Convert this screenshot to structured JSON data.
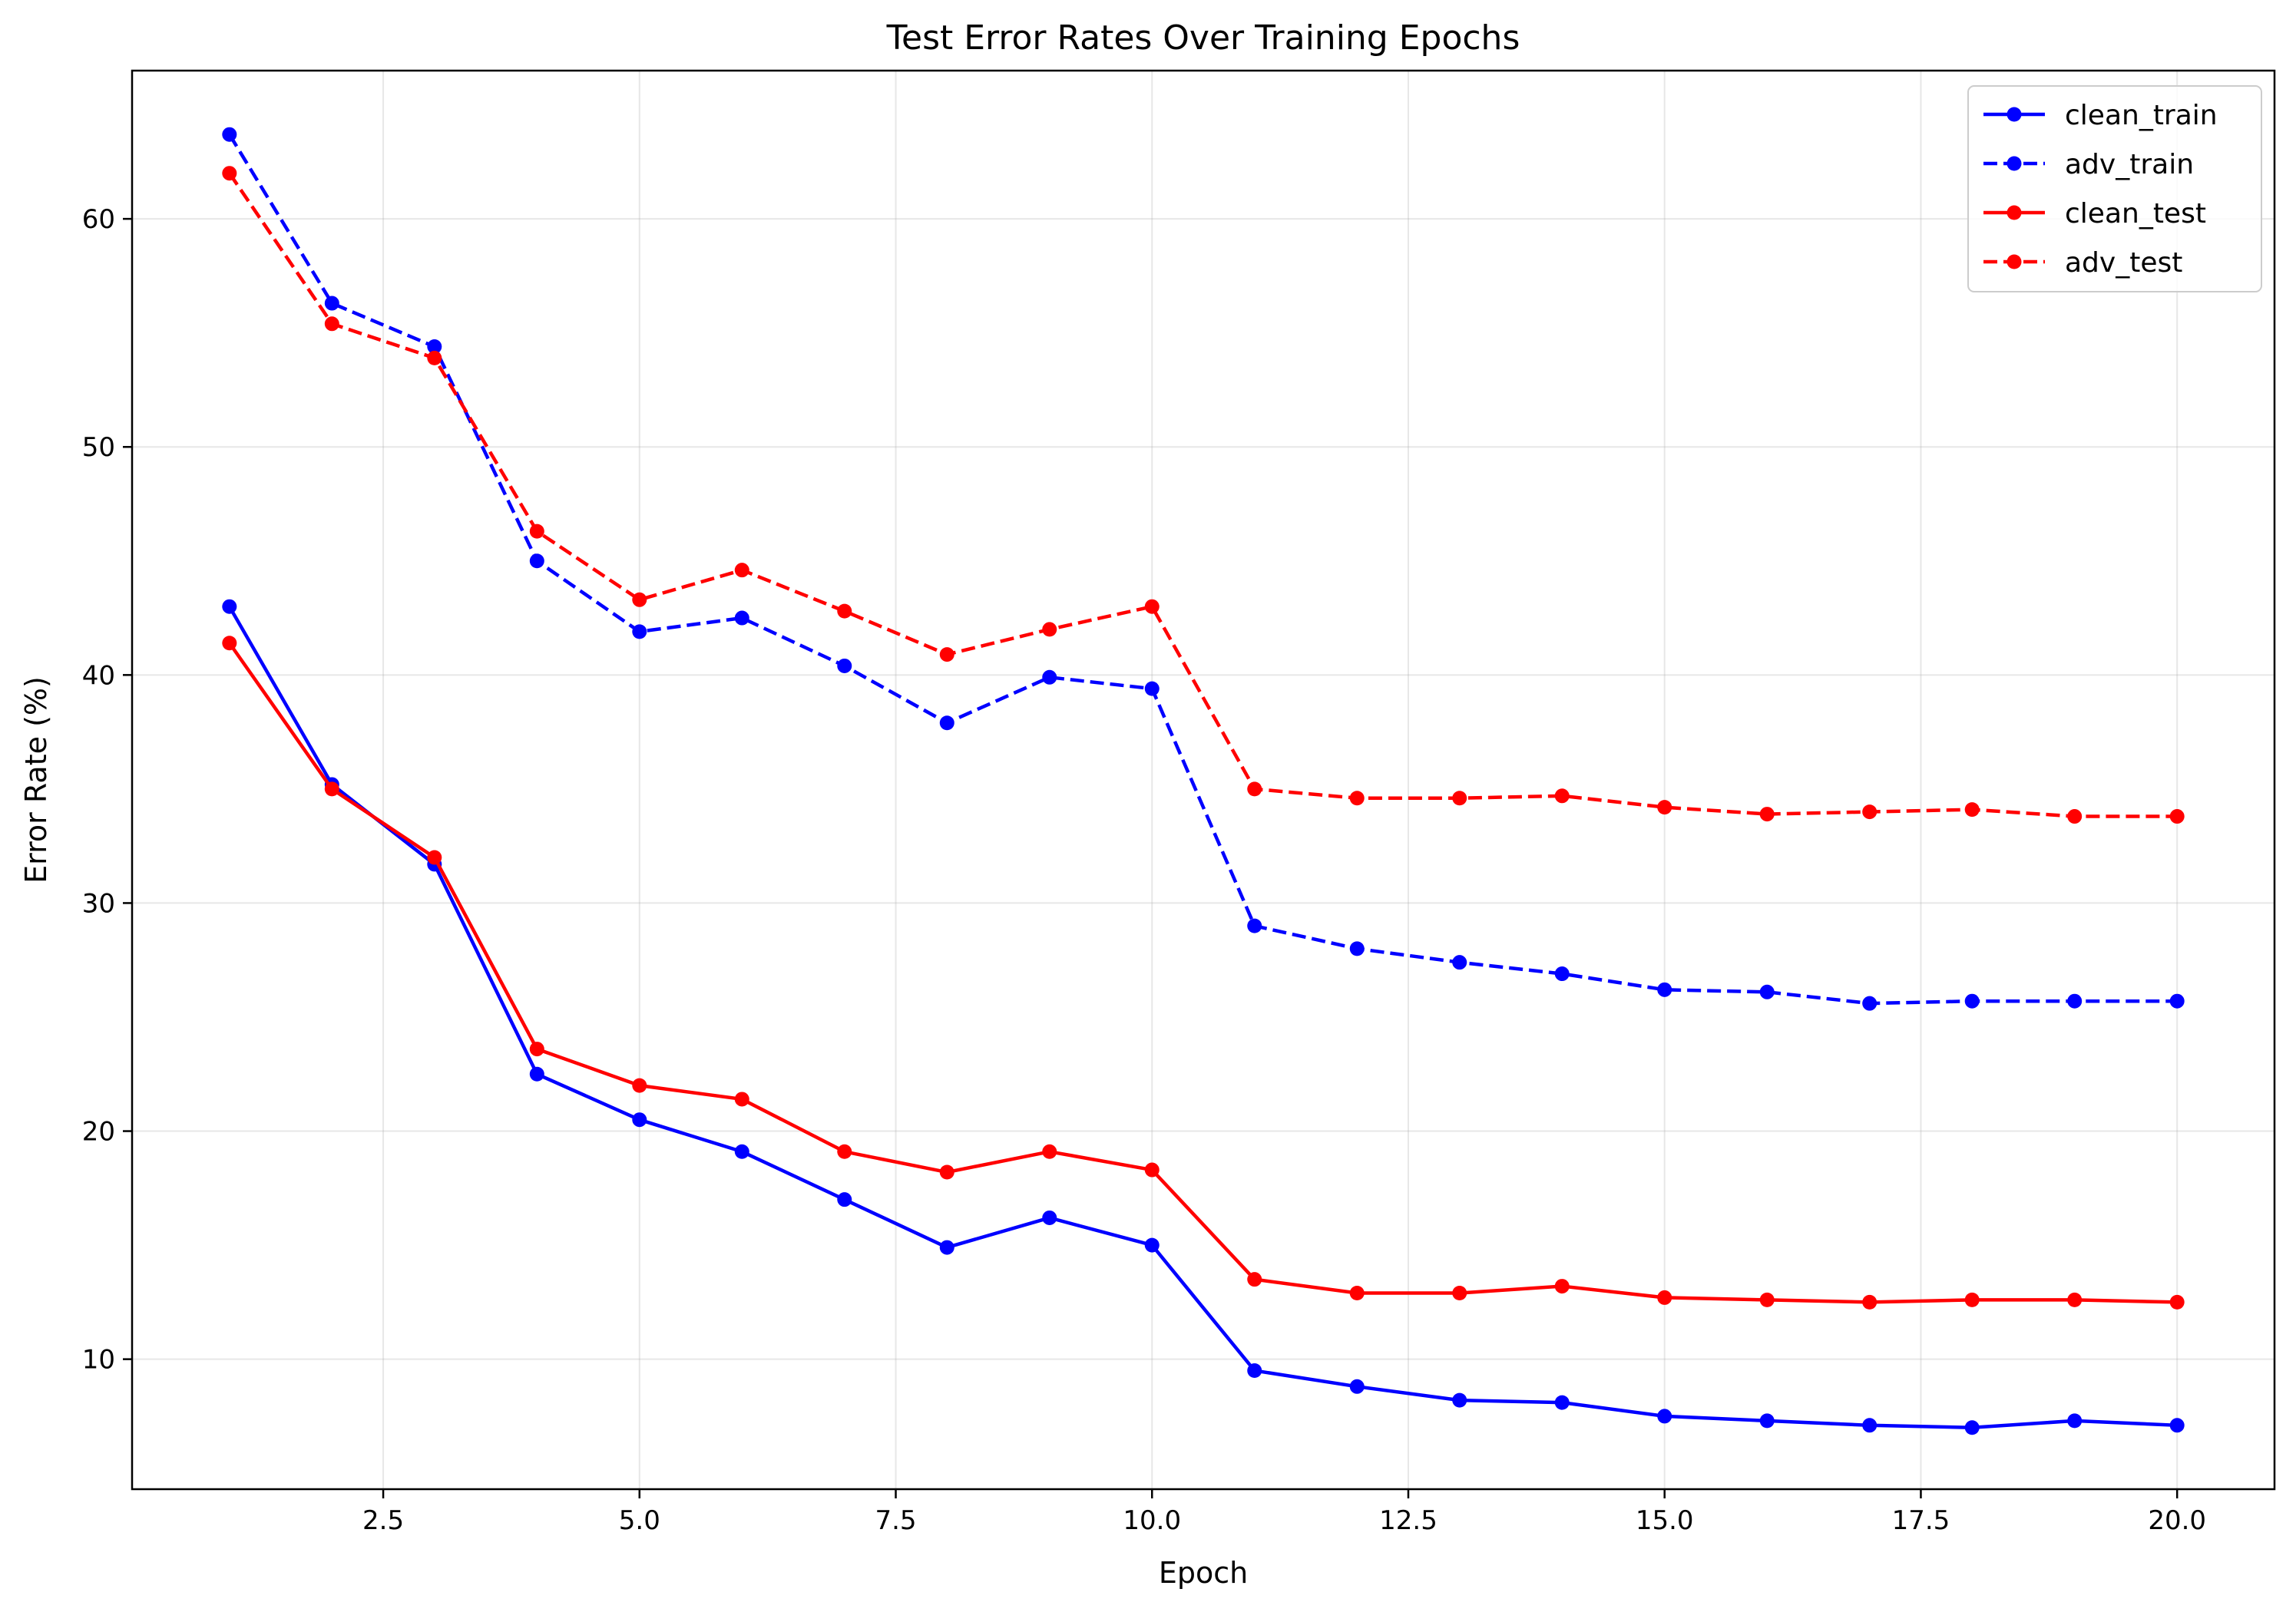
{
  "chart_data": {
    "type": "line",
    "title": "Test Error Rates Over Training Epochs",
    "xlabel": "Epoch",
    "ylabel": "Error Rate (%)",
    "xlim": [
      0.05,
      20.95
    ],
    "ylim": [
      4.3,
      66.5
    ],
    "xticks": [
      2.5,
      5.0,
      7.5,
      10.0,
      12.5,
      15.0,
      17.5,
      20.0
    ],
    "xtick_labels": [
      "2.5",
      "5.0",
      "7.5",
      "10.0",
      "12.5",
      "15.0",
      "17.5",
      "20.0"
    ],
    "yticks": [
      10,
      20,
      30,
      40,
      50,
      60
    ],
    "ytick_labels": [
      "10",
      "20",
      "30",
      "40",
      "50",
      "60"
    ],
    "grid": true,
    "legend_position": "top-right",
    "x": [
      1,
      2,
      3,
      4,
      5,
      6,
      7,
      8,
      9,
      10,
      11,
      12,
      13,
      14,
      15,
      16,
      17,
      18,
      19,
      20
    ],
    "series": [
      {
        "name": "clean_train",
        "color": "#0000ff",
        "linestyle": "solid",
        "marker": "circle",
        "values": [
          43.0,
          35.2,
          31.7,
          22.5,
          20.5,
          19.1,
          17.0,
          14.9,
          16.2,
          15.0,
          9.5,
          8.8,
          8.2,
          8.1,
          7.5,
          7.3,
          7.1,
          7.0,
          7.3,
          7.1
        ]
      },
      {
        "name": "adv_train",
        "color": "#0000ff",
        "linestyle": "dashed",
        "marker": "circle",
        "values": [
          63.7,
          56.3,
          54.4,
          45.0,
          41.9,
          42.5,
          40.4,
          37.9,
          39.9,
          39.4,
          29.0,
          28.0,
          27.4,
          26.9,
          26.2,
          26.1,
          25.6,
          25.7,
          25.7,
          25.7
        ]
      },
      {
        "name": "clean_test",
        "color": "#ff0000",
        "linestyle": "solid",
        "marker": "circle",
        "values": [
          41.4,
          35.0,
          32.0,
          23.6,
          22.0,
          21.4,
          19.1,
          18.2,
          19.1,
          18.3,
          13.5,
          12.9,
          12.9,
          13.2,
          12.7,
          12.6,
          12.5,
          12.6,
          12.6,
          12.5
        ]
      },
      {
        "name": "adv_test",
        "color": "#ff0000",
        "linestyle": "dashed",
        "marker": "circle",
        "values": [
          62.0,
          55.4,
          53.9,
          46.3,
          43.3,
          44.6,
          42.8,
          40.9,
          42.0,
          43.0,
          35.0,
          34.6,
          34.6,
          34.7,
          34.2,
          33.9,
          34.0,
          34.1,
          33.8,
          33.8
        ]
      }
    ]
  }
}
